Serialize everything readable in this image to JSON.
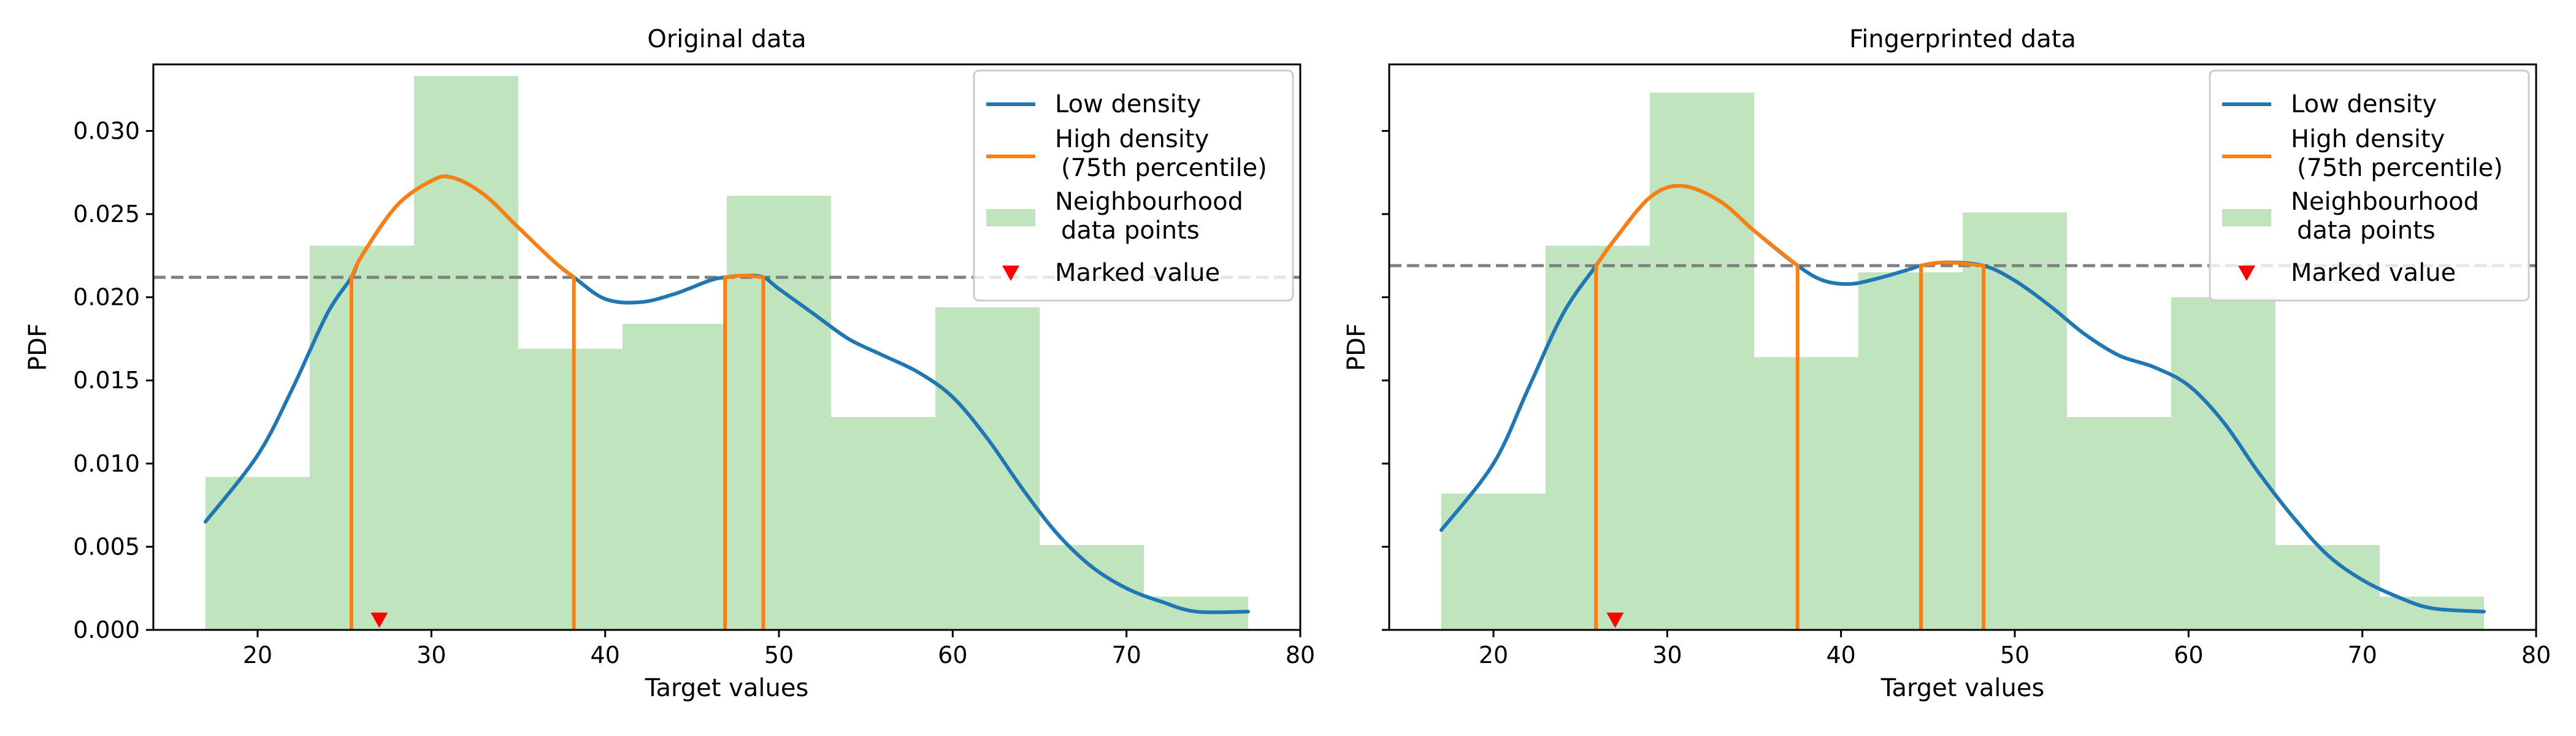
{
  "chart_data": [
    {
      "type": "bar",
      "title": "Original data",
      "xlabel": "Target values",
      "ylabel": "PDF",
      "xlim": [
        14,
        80
      ],
      "ylim": [
        0,
        0.034
      ],
      "xticks": [
        "20",
        "30",
        "40",
        "50",
        "60",
        "70",
        "80"
      ],
      "yticks": [
        "0.000",
        "0.005",
        "0.010",
        "0.015",
        "0.020",
        "0.025",
        "0.030"
      ],
      "grid": false,
      "legend_position": "top-right",
      "histogram": {
        "name": "Neighbourhood\n data points",
        "bins": [
          17,
          23,
          29,
          35,
          41,
          47,
          53,
          59,
          65,
          71,
          77
        ],
        "values": [
          0.0092,
          0.0231,
          0.0333,
          0.0169,
          0.0184,
          0.0261,
          0.0128,
          0.0194,
          0.0051,
          0.002
        ]
      },
      "low_density": {
        "name": "Low density",
        "x": [
          17,
          20,
          22,
          24,
          25.4,
          26,
          28,
          30,
          31.2,
          33,
          35,
          37,
          38.2,
          40,
          42,
          44,
          46,
          46.9,
          48,
          49.1,
          50,
          52,
          54,
          56,
          58,
          60,
          62,
          64,
          66,
          68,
          70,
          72,
          74,
          77
        ],
        "y": [
          0.0065,
          0.0105,
          0.0145,
          0.019,
          0.0212,
          0.0225,
          0.0255,
          0.027,
          0.0272,
          0.0262,
          0.0242,
          0.0222,
          0.0212,
          0.0199,
          0.0197,
          0.0202,
          0.021,
          0.0212,
          0.0213,
          0.0212,
          0.0205,
          0.019,
          0.0175,
          0.0165,
          0.0155,
          0.014,
          0.0115,
          0.0085,
          0.0058,
          0.0038,
          0.0025,
          0.0017,
          0.0011,
          0.0011
        ]
      },
      "high_density": {
        "name": "High density\n (75th percentile)",
        "threshold": 0.0212,
        "regions": [
          [
            25.4,
            38.2
          ],
          [
            46.9,
            49.1
          ]
        ]
      },
      "marked_value": {
        "name": "Marked value",
        "x": 27,
        "y": 0.0006
      }
    },
    {
      "type": "bar",
      "title": "Fingerprinted data",
      "xlabel": "Target values",
      "ylabel": "PDF",
      "xlim": [
        14,
        80
      ],
      "ylim": [
        0,
        0.034
      ],
      "xticks": [
        "20",
        "30",
        "40",
        "50",
        "60",
        "70",
        "80"
      ],
      "yticks": [],
      "grid": false,
      "legend_position": "top-right",
      "histogram": {
        "name": "Neighbourhood\n data points",
        "bins": [
          17,
          23,
          29,
          35,
          41,
          47,
          53,
          59,
          65,
          71,
          77
        ],
        "values": [
          0.0082,
          0.0231,
          0.0323,
          0.0164,
          0.0215,
          0.0251,
          0.0128,
          0.02,
          0.0051,
          0.002
        ]
      },
      "low_density": {
        "name": "Low density",
        "x": [
          17,
          20,
          22,
          24,
          25.9,
          27,
          29,
          30.8,
          33,
          35,
          37.5,
          39,
          40.5,
          42,
          44,
          44.6,
          46,
          48.2,
          50,
          52,
          54,
          56,
          58,
          60,
          62,
          64,
          66,
          68,
          70,
          72,
          74,
          77
        ],
        "y": [
          0.006,
          0.01,
          0.0145,
          0.019,
          0.0219,
          0.0235,
          0.026,
          0.0267,
          0.0258,
          0.024,
          0.0219,
          0.021,
          0.0208,
          0.0211,
          0.0217,
          0.0219,
          0.0221,
          0.0219,
          0.021,
          0.0195,
          0.0178,
          0.0165,
          0.0158,
          0.0147,
          0.0125,
          0.0095,
          0.0068,
          0.0045,
          0.003,
          0.002,
          0.0013,
          0.0011
        ]
      },
      "high_density": {
        "name": "High density\n (75th percentile)",
        "threshold": 0.0219,
        "regions": [
          [
            25.9,
            37.5
          ],
          [
            44.6,
            48.2
          ]
        ]
      },
      "marked_value": {
        "name": "Marked value",
        "x": 27,
        "y": 0.0006
      }
    }
  ],
  "colors": {
    "low_density": "#1f77b4",
    "high_density": "#ff7f0e",
    "histogram": "#c0e4be",
    "marked_value": "#ff0000",
    "threshold_line": "#808080"
  }
}
